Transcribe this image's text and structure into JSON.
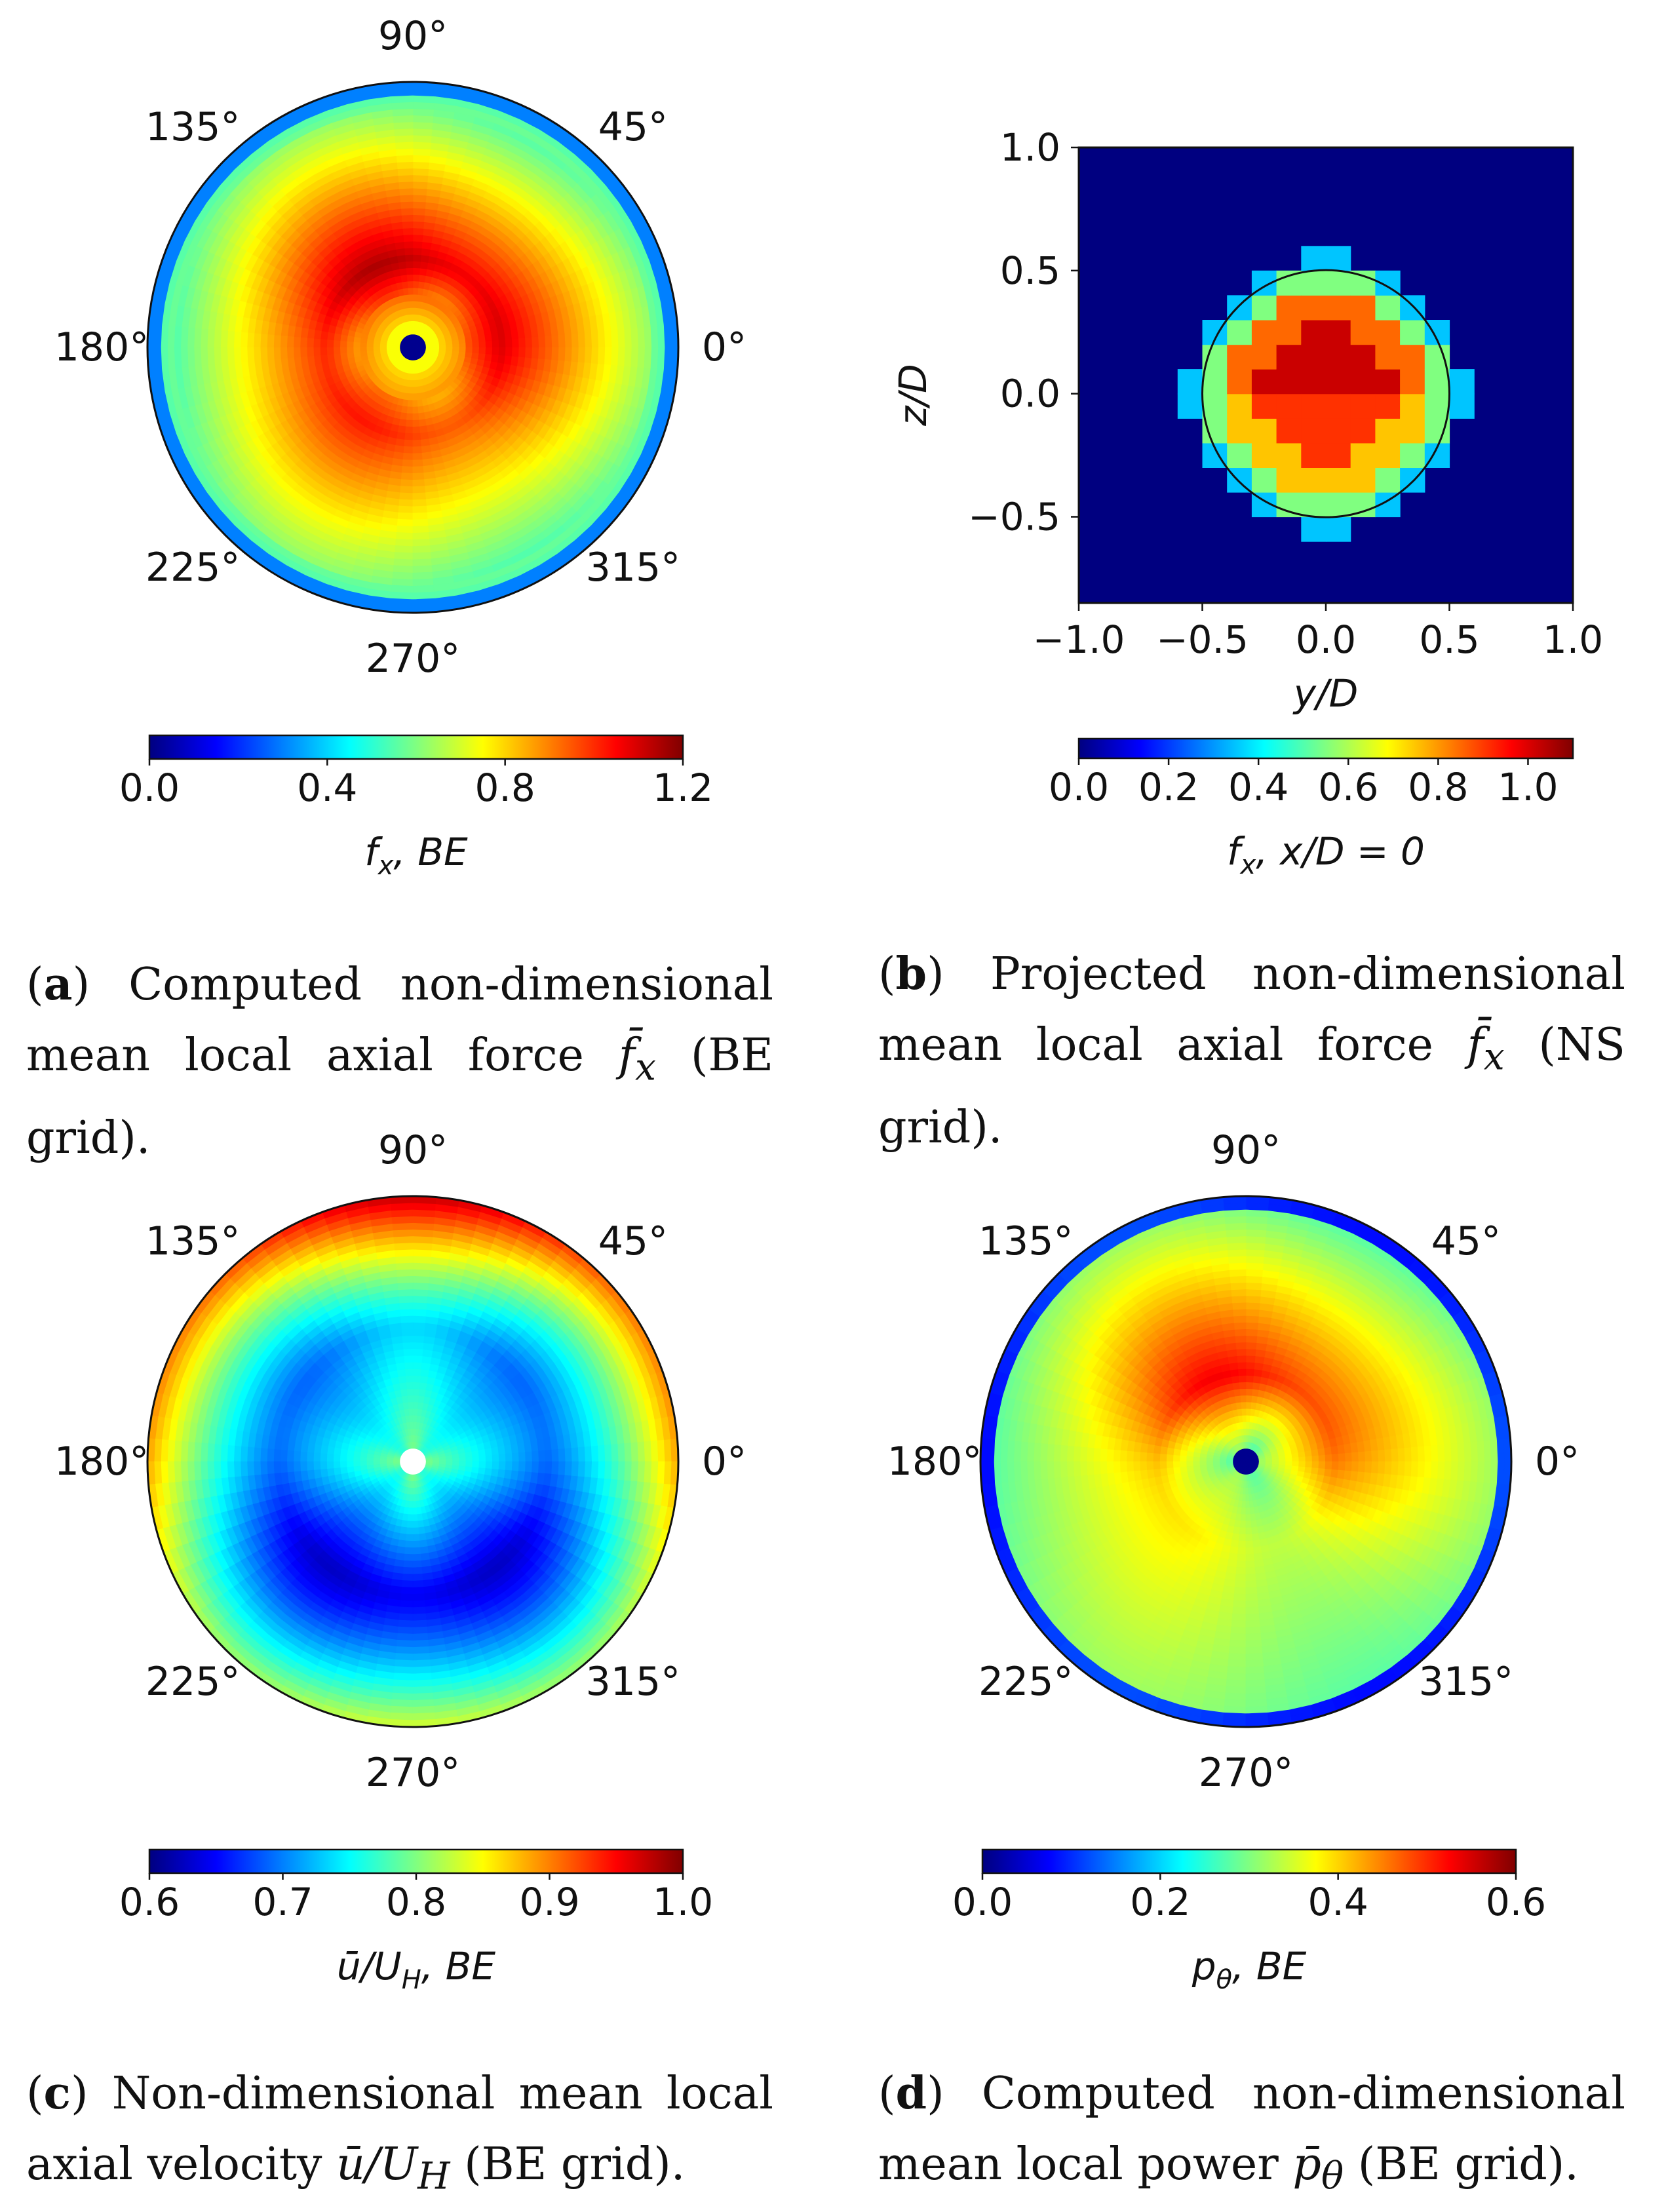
{
  "chart_data": [
    {
      "id": "a",
      "type": "polar-heatmap",
      "angle_labels": [
        "0°",
        "45°",
        "90°",
        "135°",
        "180°",
        "225°",
        "270°",
        "315°"
      ],
      "colorbar": {
        "min": 0.0,
        "max": 1.2,
        "ticks": [
          "0.0",
          "0.4",
          "0.8",
          "1.2"
        ],
        "label_main": "f",
        "label_sub": "x",
        "label_rest": ", BE"
      },
      "field": {
        "hub_value": 0.0,
        "hub_ring_value": 0.75,
        "peak_radius": 0.33,
        "peak_value_top": 1.12,
        "peak_value_bottom": 0.98,
        "edge_value": 0.55,
        "tip_band_value": 0.3
      },
      "caption": {
        "letter": "a",
        "text": "Computed non-dimensional mean local axial force",
        "symbol": "f̄",
        "sub": "x",
        "tail": "(BE grid)."
      }
    },
    {
      "id": "b",
      "type": "heatmap",
      "xlim": [
        -1.0,
        1.0
      ],
      "ylim": [
        -0.85,
        1.0
      ],
      "xticks": [
        "−1.0",
        "−0.5",
        "0.0",
        "0.5",
        "1.0"
      ],
      "yticks": [
        "1.0",
        "0.5",
        "0.0",
        "−0.5"
      ],
      "xlabel": "y/D",
      "ylabel": "z/D",
      "grid_cells": 20,
      "circle_radius": 0.5,
      "colorbar": {
        "min": 0.0,
        "max": 1.1,
        "ticks": [
          "0.0",
          "0.2",
          "0.4",
          "0.6",
          "0.8",
          "1.0"
        ],
        "label_main": "f",
        "label_sub": "x",
        "label_rest": ", x/D = 0"
      },
      "caption": {
        "letter": "b",
        "text": "Projected non-dimensional mean local axial force",
        "symbol": "f̄",
        "sub": "x",
        "tail": "(NS grid)."
      }
    },
    {
      "id": "c",
      "type": "polar-heatmap",
      "angle_labels": [
        "0°",
        "45°",
        "90°",
        "135°",
        "180°",
        "225°",
        "270°",
        "315°"
      ],
      "colorbar": {
        "min": 0.6,
        "max": 1.0,
        "ticks": [
          "0.6",
          "0.7",
          "0.8",
          "0.9",
          "1.0"
        ],
        "label_main": "ū/U",
        "label_sub": "H",
        "label_rest": ", BE"
      },
      "field": {
        "hub_value": "white",
        "center_value": 0.78,
        "min_radius": 0.5,
        "min_value_top": 0.72,
        "min_value_bottom": 0.63,
        "edge_value_top": 0.96,
        "edge_value_bottom": 0.82
      },
      "caption": {
        "letter": "c",
        "text": "Non-dimensional mean local axial velocity",
        "symbol": "ū/U",
        "sub": "H",
        "tail": "(BE grid)."
      }
    },
    {
      "id": "d",
      "type": "polar-heatmap",
      "angle_labels": [
        "0°",
        "45°",
        "90°",
        "135°",
        "180°",
        "225°",
        "270°",
        "315°"
      ],
      "colorbar": {
        "min": 0.0,
        "max": 0.6,
        "ticks": [
          "0.0",
          "0.2",
          "0.4",
          "0.6"
        ],
        "label_main": "p",
        "label_sub": "θ",
        "label_rest": ", BE"
      },
      "field": {
        "hub_value": 0.0,
        "hub_ring_value": 0.3,
        "peak_radius": 0.33,
        "peak_value_top": 0.52,
        "peak_value_bottom": 0.35,
        "edge_value": 0.3,
        "tip_band_value": 0.1
      },
      "caption": {
        "letter": "d",
        "text": "Computed non-dimensional mean local power",
        "symbol": "p̄",
        "sub": "θ",
        "tail": "(BE grid)."
      }
    }
  ]
}
